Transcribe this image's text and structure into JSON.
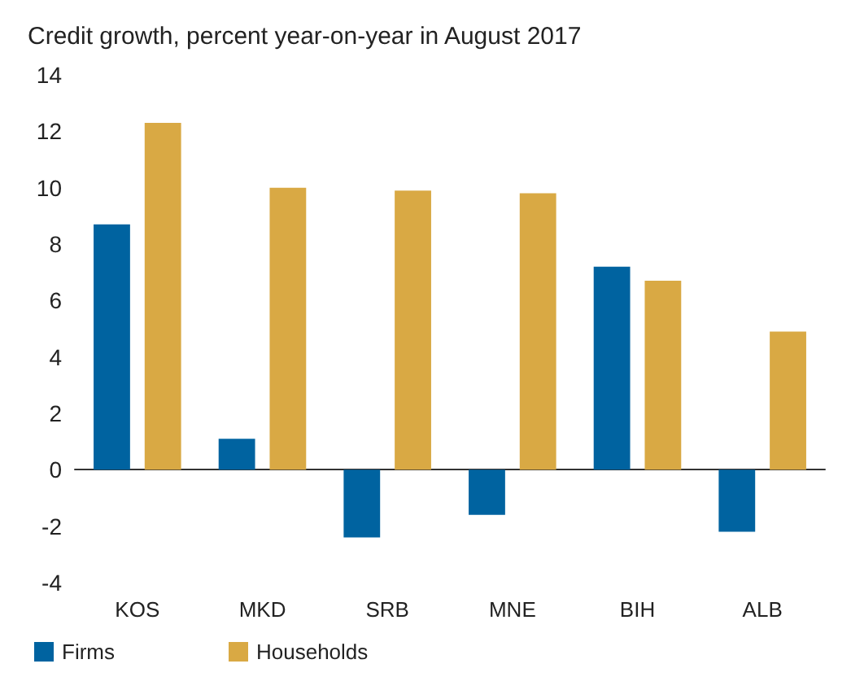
{
  "chart_data": {
    "type": "bar",
    "title": "Credit growth, percent year-on-year in August 2017",
    "categories": [
      "KOS",
      "MKD",
      "SRB",
      "MNE",
      "BIH",
      "ALB"
    ],
    "series": [
      {
        "name": "Firms",
        "color": "#0063a0",
        "values": [
          8.7,
          1.1,
          -2.4,
          -1.6,
          7.2,
          -2.2
        ]
      },
      {
        "name": "Households",
        "color": "#d9a944",
        "values": [
          12.3,
          10.0,
          9.9,
          9.8,
          6.7,
          4.9
        ]
      }
    ],
    "ylim": [
      -4,
      14
    ],
    "yticks": [
      -4,
      -2,
      0,
      2,
      4,
      6,
      8,
      10,
      12,
      14
    ],
    "legend": "bottom left"
  }
}
